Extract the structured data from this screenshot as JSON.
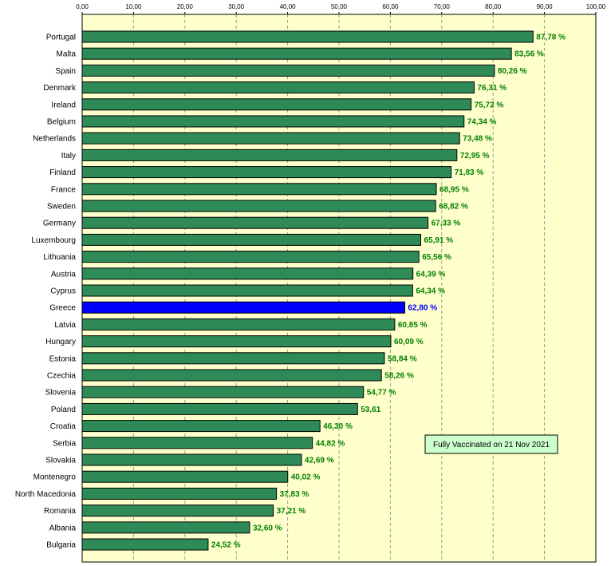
{
  "chart_data": {
    "type": "bar",
    "orientation": "horizontal",
    "categories": [
      "Portugal",
      "Malta",
      "Spain",
      "Denmark",
      "Ireland",
      "Belgium",
      "Netherlands",
      "Italy",
      "Finland",
      "France",
      "Sweden",
      "Germany",
      "Luxembourg",
      "Lithuania",
      "Austria",
      "Cyprus",
      "Greece",
      "Latvia",
      "Hungary",
      "Estonia",
      "Czechia",
      "Slovenia",
      "Poland",
      "Croatia",
      "Serbia",
      "Slovakia",
      "Montenegro",
      "North Macedonia",
      "Romania",
      "Albania",
      "Bulgaria"
    ],
    "values": [
      87.78,
      83.56,
      80.26,
      76.31,
      75.72,
      74.34,
      73.48,
      72.95,
      71.83,
      68.95,
      68.82,
      67.33,
      65.91,
      65.56,
      64.39,
      64.34,
      62.8,
      60.85,
      60.09,
      58.84,
      58.26,
      54.77,
      53.61,
      46.3,
      44.82,
      42.69,
      40.02,
      37.83,
      37.21,
      32.6,
      24.52
    ],
    "value_labels": [
      "87,78 %",
      "83,56 %",
      "80,26 %",
      "76,31 %",
      "75,72 %",
      "74,34 %",
      "73,48 %",
      "72,95 %",
      "71,83 %",
      "68,95 %",
      "68,82 %",
      "67,33 %",
      "65,91 %",
      "65,56 %",
      "64,39 %",
      "64,34 %",
      "62,80 %",
      "60,85 %",
      "60,09 %",
      "58,84 %",
      "58,26 %",
      "54,77 %",
      "53,61",
      "46,30 %",
      "44,82 %",
      "42,69 %",
      "40,02 %",
      "37,83 %",
      "37,21 %",
      "32,60 %",
      "24,52 %"
    ],
    "highlight_category": "Greece",
    "xlim": [
      0,
      100
    ],
    "x_ticks": [
      "0,00",
      "10,00",
      "20,00",
      "30,00",
      "40,00",
      "50,00",
      "60,00",
      "70,00",
      "80,00",
      "90,00",
      "100,00"
    ],
    "x_axis_position": "top",
    "grid": true,
    "annotation": "Fully Vaccinated on 21 Nov 2021",
    "colors": {
      "bar": "#2e8b57",
      "highlight_bar": "#0000ff",
      "value_label": "#008000",
      "highlight_label": "#0000ff",
      "plot_background": "#ffffcc",
      "grid": "#999999",
      "annotation_background": "#ccffcc"
    }
  }
}
